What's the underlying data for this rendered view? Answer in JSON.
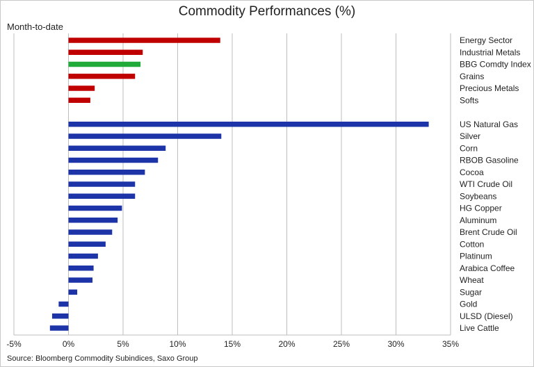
{
  "chart_data": {
    "type": "bar",
    "orientation": "horizontal",
    "title": "Commodity Performances (%)",
    "subtitle": "Month-to-date",
    "source": "Source: Bloomberg Commodity Subindices, Saxo Group",
    "xlim": [
      -5,
      35
    ],
    "xticks": [
      -5,
      0,
      5,
      10,
      15,
      20,
      25,
      30,
      35
    ],
    "xtick_suffix": "%",
    "grid": true,
    "colors": {
      "negative_or_sector": "#c00000",
      "index": "#1faa3a",
      "single": "#1c34a8"
    },
    "groups": [
      {
        "categories": [
          "Energy Sector",
          "Industrial Metals",
          "BBG Comdty Index",
          "Grains",
          "Precious Metals",
          "Softs"
        ],
        "values": [
          13.9,
          6.8,
          6.6,
          6.1,
          2.4,
          2.0
        ],
        "colors": [
          "#c00000",
          "#c00000",
          "#1faa3a",
          "#c00000",
          "#c00000",
          "#c00000"
        ]
      },
      {
        "categories": [
          "US Natural Gas",
          "Silver",
          "Corn",
          "RBOB Gasoline",
          "Cocoa",
          "WTI Crude Oil",
          "Soybeans",
          "HG Copper",
          "Aluminum",
          "Brent Crude Oil",
          "Cotton",
          "Platinum",
          "Arabica Coffee",
          "Wheat",
          "Sugar",
          "Gold",
          "ULSD (Diesel)",
          "Live Cattle"
        ],
        "values": [
          33.0,
          14.0,
          8.9,
          8.2,
          7.0,
          6.1,
          6.1,
          4.9,
          4.5,
          4.0,
          3.4,
          2.7,
          2.3,
          2.2,
          0.8,
          -0.9,
          -1.5,
          -1.7
        ],
        "colors": [
          "#1c34a8",
          "#1c34a8",
          "#1c34a8",
          "#1c34a8",
          "#1c34a8",
          "#1c34a8",
          "#1c34a8",
          "#1c34a8",
          "#1c34a8",
          "#1c34a8",
          "#1c34a8",
          "#1c34a8",
          "#1c34a8",
          "#1c34a8",
          "#1c34a8",
          "#1c34a8",
          "#1c34a8",
          "#1c34a8"
        ]
      }
    ]
  }
}
